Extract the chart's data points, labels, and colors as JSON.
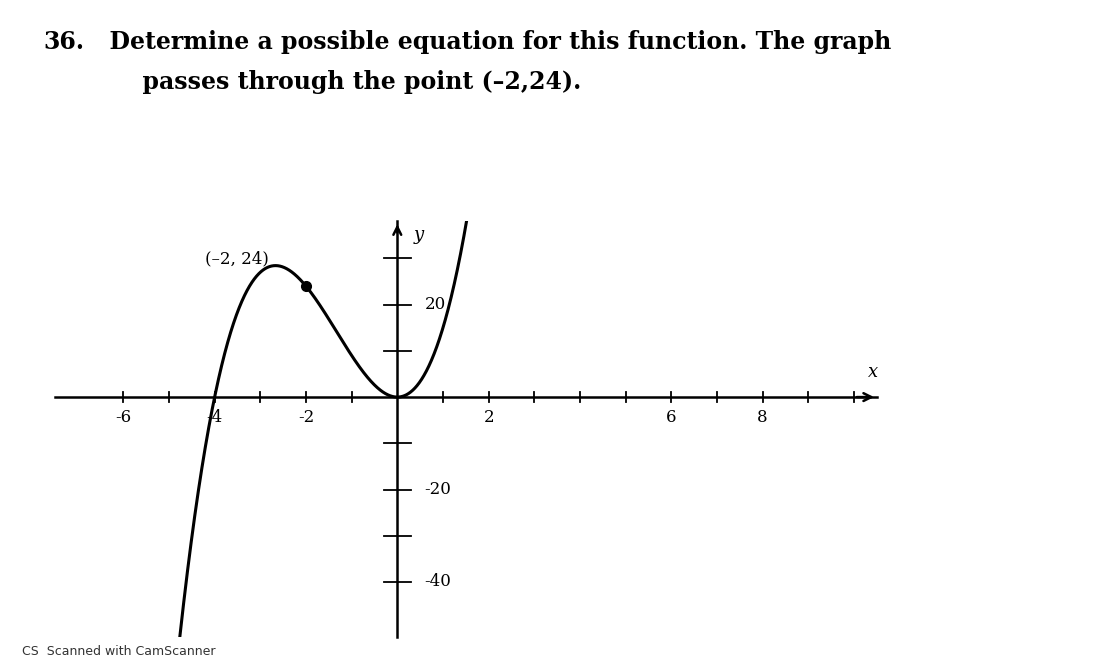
{
  "title_number": "36.",
  "title_text": "  Determine a possible equation for this function. The graph",
  "title_line2": "      passes through the point (–2,24).",
  "point_x": -2,
  "point_y": 24,
  "point_label": "(–2, 24)",
  "xlim": [
    -7.5,
    10.5
  ],
  "ylim": [
    -52,
    38
  ],
  "x_label": "x",
  "y_label": "y",
  "background_color": "#ffffff",
  "curve_color": "#000000",
  "curve_linewidth": 2.2,
  "axis_color": "#000000",
  "tick_color": "#000000",
  "font_color": "#000000",
  "point_dot_color": "#000000",
  "annotation_fontsize": 12,
  "tick_fontsize": 12,
  "title_fontsize": 17,
  "footer_text": "CS  Scanned with CamScanner",
  "footer_fontsize": 9
}
